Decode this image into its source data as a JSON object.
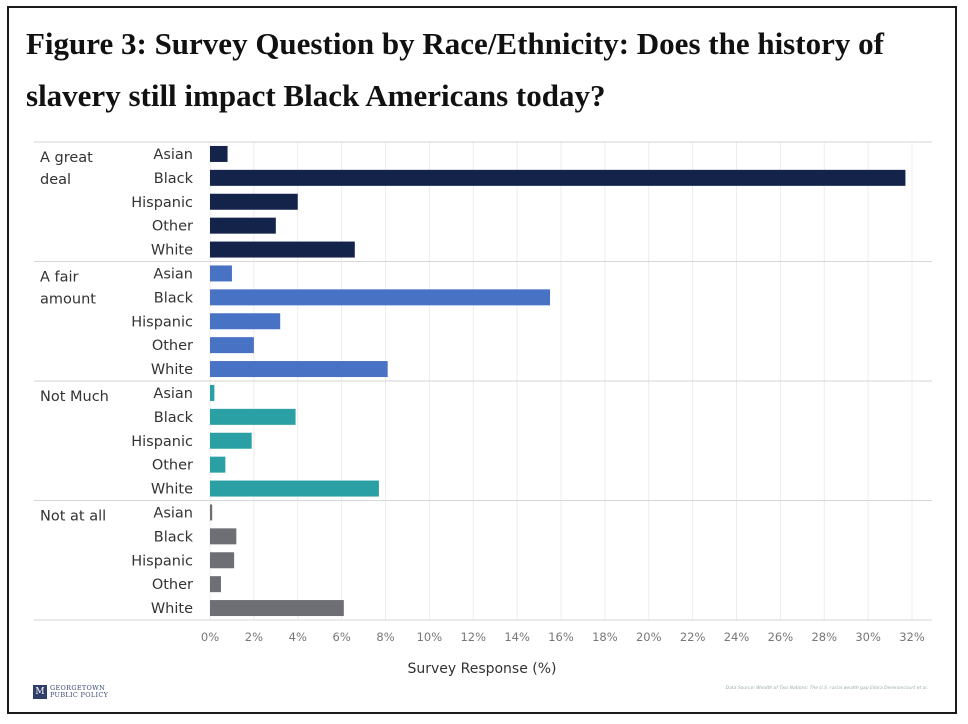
{
  "title": "Figure 3: Survey Question by Race/Ethnicity: Does the history of slavery still impact Black Americans today?",
  "chart_data": {
    "type": "bar",
    "orientation": "horizontal",
    "xlabel": "Survey Response (%)",
    "xlim": [
      0,
      32
    ],
    "xticks": [
      "0%",
      "2%",
      "4%",
      "6%",
      "8%",
      "10%",
      "12%",
      "14%",
      "16%",
      "18%",
      "20%",
      "22%",
      "24%",
      "26%",
      "28%",
      "30%",
      "32%"
    ],
    "grid": true,
    "groups": [
      {
        "name": "A great deal",
        "label_lines": [
          "A great",
          "deal"
        ],
        "color": "#14234a",
        "categories": [
          "Asian",
          "Black",
          "Hispanic",
          "Other",
          "White"
        ],
        "values": [
          0.8,
          31.7,
          4.0,
          3.0,
          6.6
        ]
      },
      {
        "name": "A fair amount",
        "label_lines": [
          "A fair",
          "amount"
        ],
        "color": "#4872c4",
        "categories": [
          "Asian",
          "Black",
          "Hispanic",
          "Other",
          "White"
        ],
        "values": [
          1.0,
          15.5,
          3.2,
          2.0,
          8.1
        ]
      },
      {
        "name": "Not Much",
        "label_lines": [
          "Not Much"
        ],
        "color": "#2aa0a4",
        "categories": [
          "Asian",
          "Black",
          "Hispanic",
          "Other",
          "White"
        ],
        "values": [
          0.2,
          3.9,
          1.9,
          0.7,
          7.7
        ]
      },
      {
        "name": "Not at all",
        "label_lines": [
          "Not at all"
        ],
        "color": "#6e6e75",
        "categories": [
          "Asian",
          "Black",
          "Hispanic",
          "Other",
          "White"
        ],
        "values": [
          0.1,
          1.2,
          1.1,
          0.5,
          6.1
        ]
      }
    ]
  },
  "footer": {
    "logo_line1": "GEORGETOWN",
    "logo_line2": "PUBLIC POLICY",
    "source": "Data Source: Wealth of Two Nations: The U.S. racial wealth gap Ellora Derenoncourt et al."
  }
}
